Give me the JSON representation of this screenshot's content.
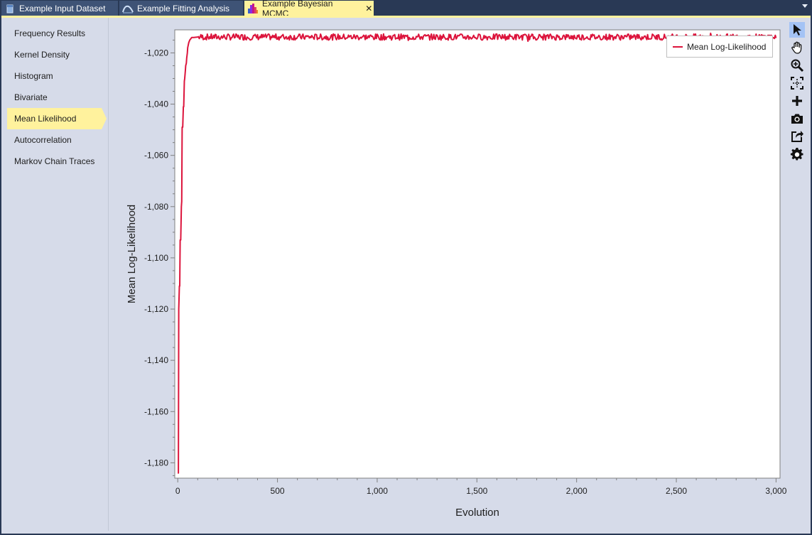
{
  "tabs": [
    {
      "label": "Example Input Dataset",
      "active": false
    },
    {
      "label": "Example Fitting Analysis",
      "active": false
    },
    {
      "label": "Example Bayesian MCMC",
      "active": true
    }
  ],
  "sidebar": {
    "items": [
      {
        "label": "Frequency Results"
      },
      {
        "label": "Kernel Density"
      },
      {
        "label": "Histogram"
      },
      {
        "label": "Bivariate"
      },
      {
        "label": "Mean Likelihood",
        "selected": true
      },
      {
        "label": "Autocorrelation"
      },
      {
        "label": "Markov Chain Traces"
      }
    ]
  },
  "toolbar": {
    "tools": [
      "pointer-icon",
      "pan-hand-icon",
      "zoom-in-icon",
      "zoom-extents-icon",
      "add-crosshair-icon",
      "camera-icon",
      "export-icon",
      "gear-icon"
    ]
  },
  "colors": {
    "accent": "#fff29d",
    "series": "#dc143c",
    "tab_inactive": "#3e5376",
    "frame": "#d6dbe9"
  },
  "chart_data": {
    "type": "line",
    "xlabel": "Evolution",
    "ylabel": "Mean Log-Likelihood",
    "xlim": [
      -15,
      3020
    ],
    "ylim": [
      -1186,
      -1011
    ],
    "x_ticks": [
      0,
      500,
      1000,
      1500,
      2000,
      2500,
      3000
    ],
    "x_tick_labels": [
      "0",
      "500",
      "1,000",
      "1,500",
      "2,000",
      "2,500",
      "3,000"
    ],
    "y_ticks": [
      -1180,
      -1160,
      -1140,
      -1120,
      -1100,
      -1080,
      -1060,
      -1040,
      -1020
    ],
    "y_tick_labels": [
      "-1,180",
      "-1,160",
      "-1,140",
      "-1,120",
      "-1,100",
      "-1,080",
      "-1,060",
      "-1,040",
      "-1,020"
    ],
    "legend": {
      "position": "top-right",
      "entries": [
        "Mean Log-Likelihood"
      ]
    },
    "grid": false,
    "series": [
      {
        "name": "Mean Log-Likelihood",
        "color": "#dc143c",
        "x": [
          0,
          3,
          5,
          8,
          10,
          12,
          15,
          18,
          20,
          22,
          25,
          28,
          30,
          33,
          35,
          38,
          40,
          43,
          45,
          48,
          50,
          55,
          60,
          65,
          70,
          80,
          100
        ],
        "y": [
          -1184,
          -1184,
          -1120,
          -1111,
          -1111,
          -1093,
          -1093,
          -1080,
          -1078,
          -1049,
          -1049,
          -1041,
          -1041,
          -1031,
          -1030,
          -1027,
          -1025,
          -1024,
          -1022,
          -1020,
          -1018,
          -1016,
          -1015,
          -1014.5,
          -1014,
          -1014,
          -1013.8
        ],
        "noise_baseline": -1013.8,
        "noise_amplitude": 1.2,
        "x_end": 3000
      }
    ]
  }
}
